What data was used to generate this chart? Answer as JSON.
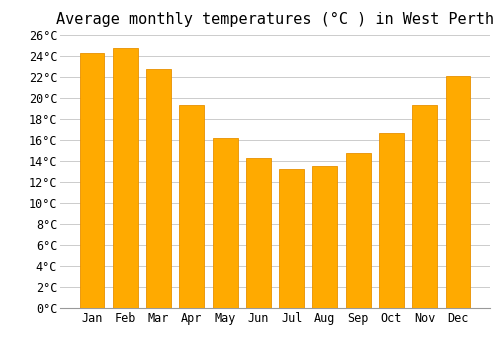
{
  "title": "Average monthly temperatures (°C ) in West Perth",
  "months": [
    "Jan",
    "Feb",
    "Mar",
    "Apr",
    "May",
    "Jun",
    "Jul",
    "Aug",
    "Sep",
    "Oct",
    "Nov",
    "Dec"
  ],
  "temperatures": [
    24.3,
    24.8,
    22.8,
    19.3,
    16.2,
    14.3,
    13.2,
    13.5,
    14.8,
    16.7,
    19.3,
    22.1
  ],
  "bar_color": "#FFAA00",
  "bar_edge_color": "#E89000",
  "background_color": "#FFFFFF",
  "grid_color": "#CCCCCC",
  "ylim": [
    0,
    26
  ],
  "ytick_step": 2,
  "title_fontsize": 11,
  "tick_fontsize": 8.5
}
